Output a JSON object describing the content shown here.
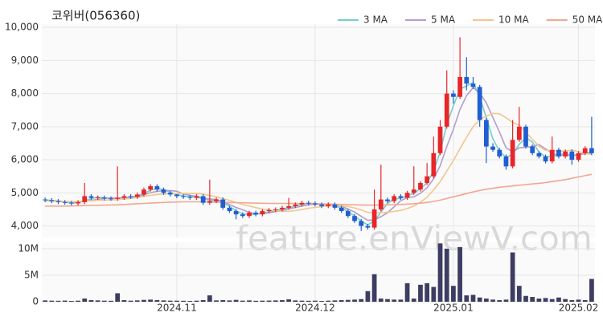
{
  "chart_data": {
    "type": "candlestick",
    "title": "코위버(056360)",
    "watermark": "feature.enViewV.com",
    "categories": [
      null,
      null,
      null,
      null,
      null,
      null,
      null,
      null,
      null,
      null,
      null,
      null,
      null,
      null,
      null,
      null,
      null,
      null,
      null,
      null,
      "2024.11",
      null,
      null,
      null,
      null,
      null,
      null,
      null,
      null,
      null,
      null,
      null,
      null,
      null,
      null,
      null,
      null,
      null,
      null,
      null,
      null,
      "2024.12",
      null,
      null,
      null,
      null,
      null,
      null,
      null,
      null,
      null,
      null,
      null,
      null,
      null,
      null,
      null,
      null,
      null,
      null,
      null,
      null,
      "2025.01",
      null,
      null,
      null,
      null,
      null,
      null,
      null,
      null,
      null,
      null,
      null,
      null,
      null,
      null,
      null,
      null,
      null,
      null,
      "2025.02",
      null,
      null
    ],
    "open": [
      4800,
      4780,
      4750,
      4720,
      4700,
      4680,
      4720,
      4900,
      4850,
      4860,
      4830,
      4820,
      4850,
      4900,
      4880,
      4950,
      5100,
      5200,
      5100,
      5000,
      4950,
      4900,
      4880,
      4850,
      4900,
      4700,
      4750,
      4800,
      4550,
      4450,
      4350,
      4300,
      4400,
      4350,
      4450,
      4480,
      4500,
      4550,
      4600,
      4650,
      4700,
      4680,
      4650,
      4600,
      4650,
      4550,
      4450,
      4300,
      4150,
      4000,
      3950,
      4500,
      4800,
      4750,
      4900,
      4850,
      5000,
      5100,
      5300,
      5500,
      6200,
      7000,
      8000,
      7900,
      8500,
      8300,
      8200,
      7200,
      6400,
      6300,
      6100,
      5800,
      6600,
      7000,
      6400,
      6200,
      6100,
      5950,
      6300,
      6100,
      6250,
      6000,
      6200,
      6350
    ],
    "high": [
      4860,
      4840,
      4810,
      4780,
      4760,
      4780,
      5300,
      4960,
      4920,
      4920,
      4890,
      5800,
      4960,
      4960,
      5010,
      5160,
      5260,
      5260,
      5160,
      5060,
      4960,
      4960,
      4940,
      4960,
      4960,
      5400,
      4860,
      4860,
      4610,
      4510,
      4410,
      4460,
      4460,
      4510,
      4540,
      4560,
      4610,
      4850,
      4710,
      4760,
      4760,
      4740,
      4710,
      4710,
      4710,
      4610,
      4510,
      4360,
      4210,
      4060,
      5100,
      5850,
      4860,
      4960,
      4960,
      5060,
      5800,
      5360,
      5900,
      6700,
      7200,
      8700,
      8100,
      9700,
      9100,
      8500,
      8260,
      7260,
      6500,
      6360,
      6160,
      7200,
      7600,
      7060,
      6460,
      6260,
      6160,
      6700,
      6360,
      6310,
      6310,
      6260,
      6410,
      7300
    ],
    "low": [
      4720,
      4690,
      4660,
      4640,
      4620,
      4620,
      4660,
      4790,
      4790,
      4770,
      4760,
      4760,
      4790,
      4820,
      4820,
      4890,
      5040,
      5040,
      4940,
      4890,
      4840,
      4820,
      4790,
      4790,
      4640,
      4640,
      4690,
      4490,
      4390,
      4200,
      4240,
      4240,
      4290,
      4290,
      4390,
      4420,
      4440,
      4490,
      4540,
      4590,
      4620,
      4590,
      4540,
      4540,
      4490,
      4390,
      4240,
      4090,
      3850,
      3890,
      3890,
      4440,
      4690,
      4690,
      4790,
      4790,
      4940,
      5040,
      5240,
      5440,
      6140,
      6940,
      7700,
      7840,
      8100,
      8140,
      7000,
      5900,
      6240,
      6040,
      5700,
      5740,
      6540,
      6340,
      6140,
      6040,
      5890,
      5890,
      6040,
      6040,
      5850,
      5940,
      6140,
      6140
    ],
    "close": [
      4780,
      4750,
      4720,
      4700,
      4680,
      4720,
      4900,
      4850,
      4860,
      4830,
      4820,
      4850,
      4900,
      4880,
      4950,
      5100,
      5200,
      5100,
      5000,
      4950,
      4900,
      4880,
      4850,
      4900,
      4700,
      4750,
      4800,
      4550,
      4450,
      4350,
      4300,
      4400,
      4350,
      4450,
      4480,
      4500,
      4550,
      4600,
      4650,
      4700,
      4680,
      4650,
      4600,
      4650,
      4550,
      4450,
      4300,
      4150,
      4000,
      3950,
      4500,
      4800,
      4750,
      4900,
      4850,
      5000,
      5100,
      5300,
      5500,
      6200,
      7000,
      8000,
      7900,
      8500,
      8300,
      8200,
      7200,
      6400,
      6300,
      6100,
      5800,
      6600,
      7000,
      6400,
      6200,
      6100,
      5950,
      6300,
      6100,
      6250,
      6000,
      6200,
      6350,
      6200
    ],
    "up_color": "#e8262a",
    "down_color": "#1f5fd1",
    "ylim": [
      3650,
      10100
    ],
    "yticks": [
      {
        "value": 4000,
        "label": "4,000"
      },
      {
        "value": 5000,
        "label": "5,000"
      },
      {
        "value": 6000,
        "label": "6,000"
      },
      {
        "value": 7000,
        "label": "7,000"
      },
      {
        "value": 8000,
        "label": "8,000"
      },
      {
        "value": 9000,
        "label": "9,000"
      },
      {
        "value": 10000,
        "label": "10,000"
      }
    ],
    "grid": true,
    "series": [
      {
        "name": "3 MA",
        "color": "#72d0c8",
        "values": [
          4790,
          4770,
          4750,
          4723,
          4700,
          4700,
          4767,
          4823,
          4870,
          4847,
          4837,
          4833,
          4857,
          4877,
          4910,
          4977,
          5083,
          5133,
          5100,
          5017,
          4950,
          4910,
          4877,
          4877,
          4817,
          4783,
          4750,
          4700,
          4600,
          4450,
          4367,
          4350,
          4350,
          4400,
          4427,
          4477,
          4510,
          4550,
          4600,
          4650,
          4677,
          4677,
          4643,
          4633,
          4600,
          4550,
          4433,
          4300,
          4150,
          4033,
          4150,
          4417,
          4683,
          4817,
          4833,
          4917,
          4983,
          5133,
          5300,
          5667,
          6233,
          7067,
          7633,
          8133,
          8233,
          8333,
          7900,
          7267,
          6633,
          6267,
          6067,
          6167,
          6467,
          6667,
          6533,
          6233,
          6083,
          6117,
          6117,
          6217,
          6117,
          6150,
          6183,
          6250
        ]
      },
      {
        "name": "5 MA",
        "color": "#b49ccf",
        "values": [
          4760,
          4760,
          4750,
          4740,
          4726,
          4714,
          4744,
          4774,
          4802,
          4832,
          4852,
          4842,
          4852,
          4856,
          4880,
          4940,
          5006,
          5046,
          5070,
          5070,
          5050,
          4966,
          4926,
          4896,
          4846,
          4816,
          4800,
          4740,
          4650,
          4560,
          4490,
          4410,
          4370,
          4370,
          4396,
          4436,
          4466,
          4516,
          4556,
          4600,
          4636,
          4656,
          4656,
          4656,
          4626,
          4590,
          4510,
          4420,
          4290,
          4170,
          4180,
          4280,
          4400,
          4580,
          4760,
          4860,
          4880,
          4990,
          5150,
          5420,
          5820,
          6400,
          6920,
          7520,
          7940,
          8180,
          8020,
          7720,
          7280,
          6840,
          6360,
          6240,
          6360,
          6380,
          6400,
          6460,
          6330,
          6190,
          6130,
          6140,
          6120,
          6170,
          6180,
          6200
        ]
      },
      {
        "name": "10 MA",
        "color": "#f3c68e",
        "values": [
          4750,
          4750,
          4745,
          4740,
          4735,
          4735,
          4750,
          4760,
          4775,
          4781,
          4785,
          4795,
          4813,
          4831,
          4858,
          4896,
          4926,
          4951,
          4965,
          4977,
          4982,
          4985,
          4980,
          4982,
          4957,
          4922,
          4882,
          4827,
          4772,
          4712,
          4652,
          4604,
          4554,
          4509,
          4487,
          4462,
          4437,
          4442,
          4462,
          4497,
          4535,
          4560,
          4585,
          4605,
          4615,
          4610,
          4585,
          4545,
          4485,
          4410,
          4390,
          4400,
          4415,
          4440,
          4470,
          4525,
          4605,
          4720,
          4870,
          5090,
          5340,
          5660,
          5975,
          6335,
          6680,
          7000,
          7210,
          7320,
          7400,
          7390,
          7270,
          7130,
          7040,
          6830,
          6620,
          6410,
          6285,
          6275,
          6255,
          6270,
          6290,
          6250,
          6185,
          6165
        ]
      },
      {
        "name": "50 MA",
        "color": "#f4a68f",
        "values": [
          4600,
          4600,
          4600,
          4600,
          4605,
          4610,
          4615,
          4620,
          4625,
          4630,
          4635,
          4640,
          4650,
          4660,
          4670,
          4680,
          4690,
          4700,
          4710,
          4720,
          4725,
          4730,
          4730,
          4730,
          4730,
          4725,
          4720,
          4715,
          4710,
          4705,
          4700,
          4695,
          4690,
          4685,
          4680,
          4680,
          4680,
          4680,
          4680,
          4675,
          4670,
          4670,
          4665,
          4660,
          4655,
          4650,
          4645,
          4640,
          4635,
          4630,
          4630,
          4635,
          4640,
          4645,
          4650,
          4660,
          4670,
          4690,
          4710,
          4740,
          4780,
          4830,
          4880,
          4930,
          4980,
          5030,
          5070,
          5110,
          5140,
          5170,
          5190,
          5210,
          5230,
          5250,
          5270,
          5290,
          5310,
          5340,
          5370,
          5400,
          5440,
          5480,
          5520,
          5560
        ]
      }
    ],
    "volume": {
      "color": "#3d3d63",
      "values": [
        250000,
        200000,
        180000,
        220000,
        150000,
        200000,
        600000,
        300000,
        250000,
        200000,
        180000,
        1600000,
        300000,
        200000,
        250000,
        350000,
        400000,
        300000,
        250000,
        200000,
        200000,
        180000,
        150000,
        200000,
        300000,
        1200000,
        250000,
        300000,
        250000,
        350000,
        200000,
        250000,
        180000,
        200000,
        220000,
        250000,
        300000,
        450000,
        250000,
        200000,
        180000,
        200000,
        150000,
        200000,
        250000,
        300000,
        350000,
        400000,
        500000,
        2000000,
        5200000,
        600000,
        500000,
        400000,
        400000,
        3500000,
        600000,
        3200000,
        3500000,
        2800000,
        11000000,
        10000000,
        3000000,
        10300000,
        1200000,
        1300000,
        800000,
        600000,
        400000,
        300000,
        400000,
        9300000,
        3000000,
        1100000,
        900000,
        600000,
        700000,
        500000,
        800000,
        500000,
        300000,
        400000,
        300000,
        4300000
      ],
      "ylim": [
        0,
        11200000
      ],
      "yticks": [
        0,
        {
          "value": 5000000,
          "label": "5M"
        },
        {
          "value": 10000000,
          "label": "10M"
        }
      ]
    }
  }
}
